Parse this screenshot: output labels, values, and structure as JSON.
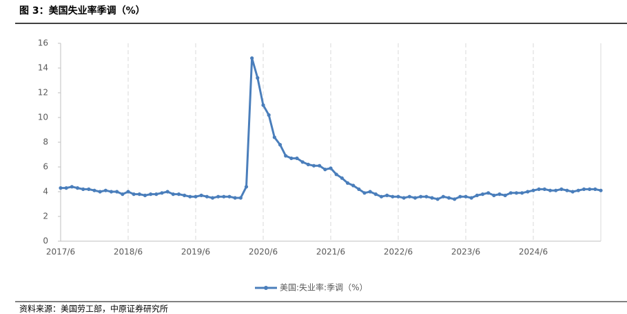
{
  "chart_data": {
    "type": "line",
    "title": "图 3：美国失业率季调（%）",
    "source": "资料来源：美国劳工部，中原证券研究所",
    "categories": [
      "2017/6",
      null,
      null,
      null,
      null,
      null,
      null,
      null,
      null,
      null,
      null,
      null,
      "2018/6",
      null,
      null,
      null,
      null,
      null,
      null,
      null,
      null,
      null,
      null,
      null,
      "2019/6",
      null,
      null,
      null,
      null,
      null,
      null,
      null,
      null,
      null,
      null,
      null,
      "2020/6",
      null,
      null,
      null,
      null,
      null,
      null,
      null,
      null,
      null,
      null,
      null,
      "2021/6",
      null,
      null,
      null,
      null,
      null,
      null,
      null,
      null,
      null,
      null,
      null,
      "2022/6",
      null,
      null,
      null,
      null,
      null,
      null,
      null,
      null,
      null,
      null,
      null,
      "2023/6",
      null,
      null,
      null,
      null,
      null,
      null,
      null,
      null,
      null,
      null,
      null,
      "2024/6",
      null,
      null,
      null,
      null,
      null,
      null,
      null,
      null,
      null,
      null,
      null,
      null
    ],
    "series": [
      {
        "name": "美国:失业率:季调（%）",
        "color": "#4a7ebb",
        "values": [
          4.3,
          4.3,
          4.4,
          4.3,
          4.2,
          4.2,
          4.1,
          4.0,
          4.1,
          4.0,
          4.0,
          3.8,
          4.0,
          3.8,
          3.8,
          3.7,
          3.8,
          3.8,
          3.9,
          4.0,
          3.8,
          3.8,
          3.7,
          3.6,
          3.6,
          3.7,
          3.6,
          3.5,
          3.6,
          3.6,
          3.6,
          3.5,
          3.5,
          4.4,
          14.8,
          13.2,
          11.0,
          10.2,
          8.4,
          7.8,
          6.9,
          6.7,
          6.7,
          6.4,
          6.2,
          6.1,
          6.1,
          5.8,
          5.9,
          5.4,
          5.1,
          4.7,
          4.5,
          4.2,
          3.9,
          4.0,
          3.8,
          3.6,
          3.7,
          3.6,
          3.6,
          3.5,
          3.6,
          3.5,
          3.6,
          3.6,
          3.5,
          3.4,
          3.6,
          3.5,
          3.4,
          3.6,
          3.6,
          3.5,
          3.7,
          3.8,
          3.9,
          3.7,
          3.8,
          3.7,
          3.9,
          3.9,
          3.9,
          4.0,
          4.1,
          4.2,
          4.2,
          4.1,
          4.1,
          4.2,
          4.1,
          4.0,
          4.1,
          4.2,
          4.2,
          4.2,
          4.1
        ]
      }
    ],
    "ylim": [
      0,
      16
    ],
    "yticks": [
      0,
      2,
      4,
      6,
      8,
      10,
      12,
      14,
      16
    ],
    "grid": "x",
    "legend": "bottom"
  }
}
